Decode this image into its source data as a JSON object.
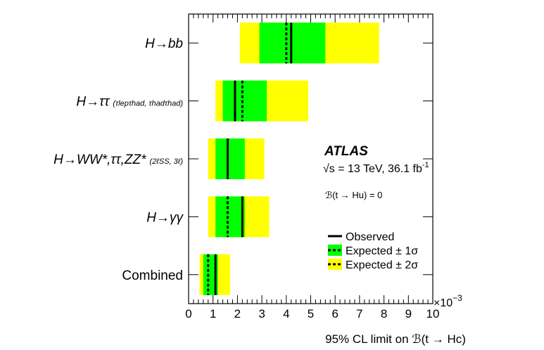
{
  "chart_data": {
    "type": "bar",
    "title": "",
    "xlabel": "95% CL limit on ℬ(t → Hc)",
    "ylabel": "",
    "xlim": [
      0,
      10
    ],
    "x_multiplier": "×10",
    "x_multiplier_exp": "−3",
    "x_ticks": [
      "0",
      "1",
      "2",
      "3",
      "4",
      "5",
      "6",
      "7",
      "8",
      "9",
      "10"
    ],
    "grid": false,
    "legend_position": "right",
    "categories": [
      {
        "main": "H→bb",
        "sub": ""
      },
      {
        "main": "H→ττ",
        "sub": "(τlepτhad, τhadτhad)"
      },
      {
        "main": "H→WW*,ττ,ZZ*",
        "sub": "(2ℓSS, 3ℓ)"
      },
      {
        "main": "H→γγ",
        "sub": ""
      },
      {
        "main": "Combined",
        "sub": ""
      }
    ],
    "series": [
      {
        "name": "Observed",
        "values": [
          4.2,
          1.9,
          1.6,
          2.2,
          1.1
        ]
      },
      {
        "name": "Expected ± 1σ",
        "values": [
          4.0,
          2.2,
          1.6,
          1.6,
          0.8
        ],
        "low": [
          2.9,
          1.4,
          1.1,
          1.1,
          0.6
        ],
        "high": [
          5.6,
          3.2,
          2.3,
          2.3,
          1.2
        ]
      },
      {
        "name": "Expected ± 2σ",
        "values": [
          4.0,
          2.2,
          1.6,
          1.6,
          0.8
        ],
        "low": [
          2.1,
          1.1,
          0.8,
          0.8,
          0.45
        ],
        "high": [
          7.8,
          4.9,
          3.1,
          3.3,
          1.7
        ]
      }
    ],
    "annotations": {
      "experiment": "ATLAS",
      "energy_prefix": "√s = 13 TeV, 36.1 fb",
      "energy_exp": "-1",
      "condition": "ℬ(t → Hu) = 0"
    }
  },
  "colors": {
    "one_sigma": "#00ff00",
    "two_sigma": "#ffff00",
    "line": "#000000"
  }
}
